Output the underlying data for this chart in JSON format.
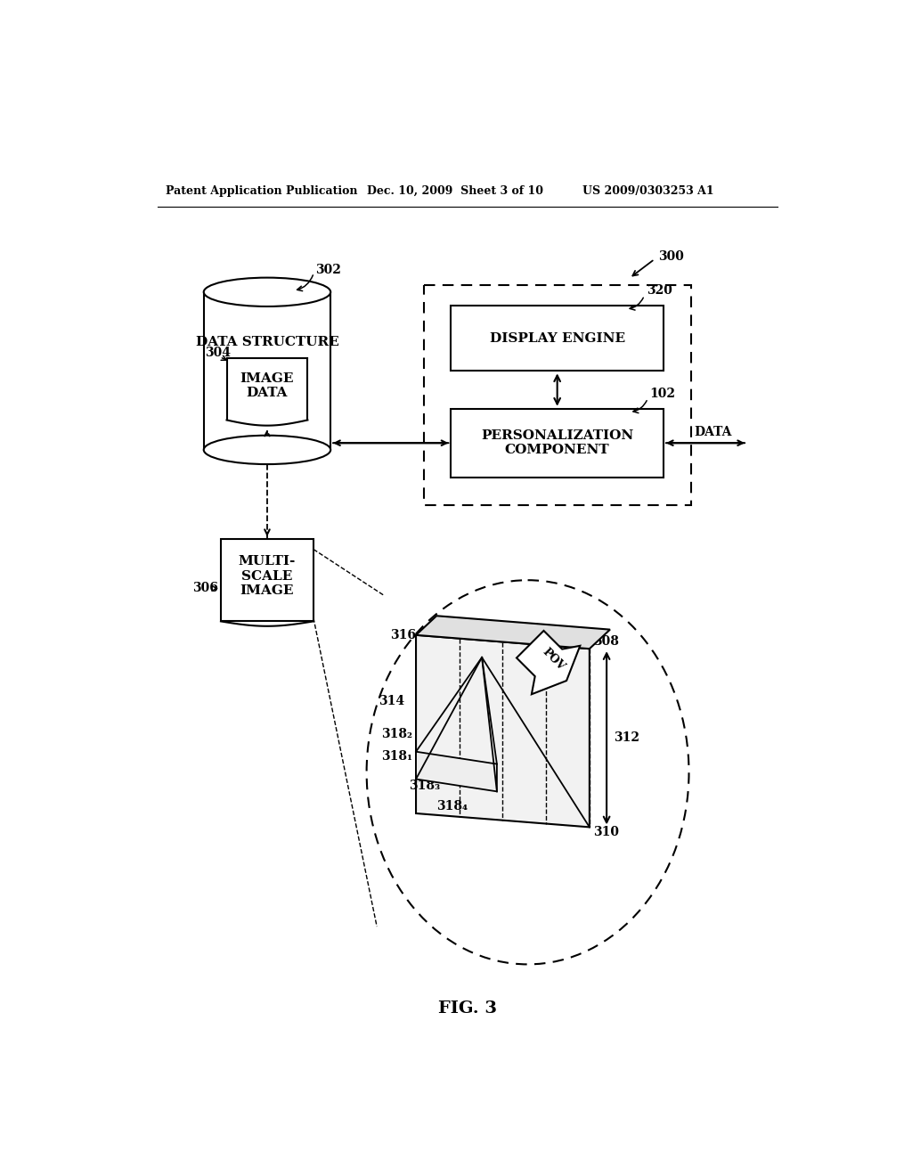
{
  "bg_color": "#ffffff",
  "header_left": "Patent Application Publication",
  "header_mid": "Dec. 10, 2009  Sheet 3 of 10",
  "header_right": "US 2009/0303253 A1",
  "fig_label": "FIG. 3",
  "label_300": "300",
  "label_302": "302",
  "label_304": "304",
  "label_306": "306",
  "label_320": "320",
  "label_102": "102",
  "label_308": "308",
  "label_310": "310",
  "label_312": "312",
  "label_314": "314",
  "label_316": "316",
  "label_3181": "318₁",
  "label_3182": "318₂",
  "label_3183": "318₃",
  "label_3184": "318₄",
  "text_data_structure": "DATA STRUCTURE",
  "text_image_data": "IMAGE\nDATA",
  "text_display_engine": "DISPLAY ENGINE",
  "text_personalization": "PERSONALIZATION\nCOMPONENT",
  "text_multi_scale": "MULTI-\nSCALE\nIMAGE",
  "text_data": "DATA",
  "text_pov": "POV"
}
